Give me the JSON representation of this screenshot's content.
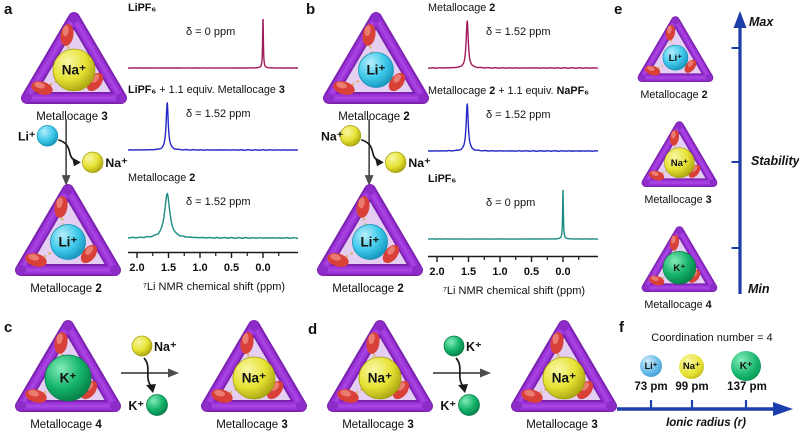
{
  "figure": {
    "panel_letters": [
      "a",
      "b",
      "c",
      "d",
      "e",
      "f"
    ]
  },
  "ions": {
    "li": {
      "label": "Li⁺",
      "base": "#3ec9ea",
      "hi": "#b6eefb",
      "lo": "#128fb5",
      "r": 17.5
    },
    "na": {
      "label": "Na⁺",
      "base": "#e6e233",
      "hi": "#f8f6a6",
      "lo": "#a39d0e",
      "r": 21
    },
    "k": {
      "label": "K⁺",
      "base": "#14b36b",
      "hi": "#84ecba",
      "lo": "#067a45",
      "r": 23
    },
    "lif": {
      "label": "Li⁺",
      "base": "#63b9e9",
      "hi": "#cfeafa",
      "lo": "#2b7fc0",
      "r": 17.5
    }
  },
  "colors": {
    "tube_dark": "#7c22b0",
    "tube_mid": "#9c33d8",
    "tube_light": "#ae4fe6",
    "face": "#c9a0e8",
    "oxygen_red": "#d84038",
    "oxygen_hi": "#f29084",
    "dash_tan": "#ddb26a",
    "arrow_gray": "#4d4d4d",
    "arrow_black": "#1a1a1a",
    "axis_blue": "#1d3ca8",
    "crimson": "#a0195a",
    "royal_blue": "#2328c6",
    "teal": "#1b8c83"
  },
  "cages": {
    "a_top": {
      "ion": "na",
      "caption": [
        {
          "t": "Metallocage "
        },
        {
          "t": "3",
          "b": true
        }
      ]
    },
    "a_bottom": {
      "ion": "li",
      "caption": [
        {
          "t": "Metallocage "
        },
        {
          "t": "2",
          "b": true
        }
      ]
    },
    "b_top": {
      "ion": "li",
      "caption": [
        {
          "t": "Metallocage "
        },
        {
          "t": "2",
          "b": true
        }
      ]
    },
    "b_bottom": {
      "ion": "li",
      "caption": [
        {
          "t": "Metallocage "
        },
        {
          "t": "2",
          "b": true
        }
      ]
    },
    "c_left": {
      "ion": "k",
      "caption": [
        {
          "t": "Metallocage "
        },
        {
          "t": "4",
          "b": true
        }
      ]
    },
    "c_right": {
      "ion": "na",
      "caption": [
        {
          "t": "Metallocage "
        },
        {
          "t": "3",
          "b": true
        }
      ]
    },
    "d_left": {
      "ion": "na",
      "caption": [
        {
          "t": "Metallocage "
        },
        {
          "t": "3",
          "b": true
        }
      ]
    },
    "d_right": {
      "ion": "na",
      "caption": [
        {
          "t": "Metallocage "
        },
        {
          "t": "3",
          "b": true
        }
      ]
    },
    "e_1": {
      "ion": "li",
      "caption": [
        {
          "t": "Metallocage "
        },
        {
          "t": "2",
          "b": true
        }
      ]
    },
    "e_2": {
      "ion": "na",
      "caption": [
        {
          "t": "Metallocage "
        },
        {
          "t": "3",
          "b": true
        }
      ]
    },
    "e_3": {
      "ion": "k",
      "caption": [
        {
          "t": "Metallocage "
        },
        {
          "t": "4",
          "b": true
        }
      ]
    }
  },
  "exchanges": {
    "a": {
      "dir": "vertical",
      "in": "li",
      "out": "na"
    },
    "b": {
      "dir": "vertical",
      "in": "na",
      "out": "na"
    },
    "c": {
      "dir": "horizontal",
      "in": "na",
      "out": "k"
    },
    "d": {
      "dir": "horizontal",
      "in": "k",
      "out": "k"
    }
  },
  "chart_data": [
    {
      "type": "line",
      "panel": "a",
      "title": "",
      "xlabel": "⁷Li NMR chemical shift (ppm)",
      "x_ticks": [
        {
          "label": "2.0",
          "ppm": 2.0
        },
        {
          "label": "1.5",
          "ppm": 1.5
        },
        {
          "label": "1.0",
          "ppm": 1.0
        },
        {
          "label": "0.5",
          "ppm": 0.5
        },
        {
          "label": "0.0",
          "ppm": 0.0
        }
      ],
      "x_range": [
        2.14,
        -0.56
      ],
      "series": [
        {
          "name_rich": [
            {
              "t": "LiPF₆",
              "b": true
            }
          ],
          "annotation": "δ = 0 ppm",
          "peak_ppm": 0.0,
          "color": "#a0195a",
          "shape": "sharp"
        },
        {
          "name_rich": [
            {
              "t": "LiPF₆",
              "b": true
            },
            {
              "t": " + 1.1 equiv. Metallocage "
            },
            {
              "t": "3",
              "b": true
            }
          ],
          "annotation": "δ = 1.52 ppm",
          "peak_ppm": 1.52,
          "color": "#2328c6",
          "shape": "medium"
        },
        {
          "name_rich": [
            {
              "t": "Metallocage "
            },
            {
              "t": "2",
              "b": true
            }
          ],
          "annotation": "δ = 1.52 ppm",
          "peak_ppm": 1.52,
          "color": "#1b8c83",
          "shape": "broad"
        }
      ]
    },
    {
      "type": "line",
      "panel": "b",
      "title": "",
      "xlabel": "⁷Li NMR chemical shift (ppm)",
      "x_ticks": [
        {
          "label": "2.0",
          "ppm": 2.0
        },
        {
          "label": "1.5",
          "ppm": 1.5
        },
        {
          "label": "1.0",
          "ppm": 1.0
        },
        {
          "label": "0.5",
          "ppm": 0.5
        },
        {
          "label": "0.0",
          "ppm": 0.0
        }
      ],
      "x_range": [
        2.14,
        -0.56
      ],
      "series": [
        {
          "name_rich": [
            {
              "t": "Metallocage "
            },
            {
              "t": "2",
              "b": true
            }
          ],
          "annotation": "δ = 1.52 ppm",
          "peak_ppm": 1.52,
          "color": "#a0195a",
          "shape": "medium"
        },
        {
          "name_rich": [
            {
              "t": "Metallocage "
            },
            {
              "t": "2",
              "b": true
            },
            {
              "t": " + 1.1 equiv. "
            },
            {
              "t": "NaPF₆",
              "b": true
            }
          ],
          "annotation": "δ = 1.52 ppm",
          "peak_ppm": 1.52,
          "color": "#2328c6",
          "shape": "medium"
        },
        {
          "name_rich": [
            {
              "t": "LiPF₆",
              "b": true
            }
          ],
          "annotation": "δ = 0 ppm",
          "peak_ppm": 0.0,
          "color": "#1b8c83",
          "shape": "sharp"
        }
      ]
    }
  ],
  "stability_scale": {
    "max": "Max",
    "mid": "Stability",
    "min": "Min"
  },
  "panel_f": {
    "title": "Coordination number = 4",
    "items": [
      {
        "ion": "lif",
        "radius_label": "73 pm",
        "radius_pm": 73
      },
      {
        "ion": "na",
        "radius_label": "99 pm",
        "radius_pm": 99
      },
      {
        "ion": "k",
        "radius_label": "137 pm",
        "radius_pm": 137
      }
    ],
    "axis_label": "Ionic radius (r)"
  }
}
